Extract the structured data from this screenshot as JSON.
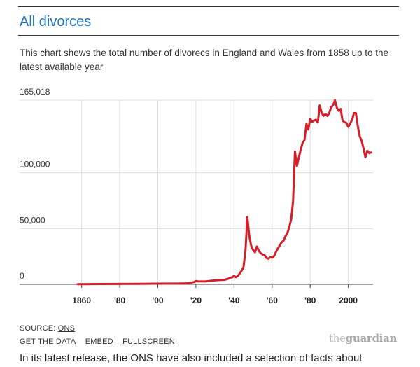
{
  "header": {
    "title": "All divorces",
    "subtitle": "This chart shows the total number of divorecs in England and Wales from 1858 up to the latest available year"
  },
  "chart_data": {
    "type": "line",
    "title": "All divorces",
    "xlabel": "",
    "ylabel": "",
    "xlim": [
      1848,
      2013
    ],
    "ylim": [
      0,
      165018
    ],
    "y_ticks": [
      0,
      50000,
      100000,
      165018
    ],
    "y_tick_labels": [
      "0",
      "50,000",
      "100,000",
      "165,018"
    ],
    "x_ticks": [
      1860,
      1880,
      1900,
      1920,
      1940,
      1960,
      1980,
      2000
    ],
    "x_tick_labels": [
      "1860",
      "'80",
      "'00",
      "'20",
      "'40",
      "'60",
      "'80",
      "2000"
    ],
    "grid": true,
    "line_color": "#d61d28",
    "series": [
      {
        "name": "",
        "x": [
          1858,
          1870,
          1880,
          1890,
          1900,
          1910,
          1915,
          1919,
          1920,
          1921,
          1925,
          1930,
          1935,
          1937,
          1938,
          1939,
          1940,
          1941,
          1942,
          1943,
          1944,
          1945,
          1946,
          1947,
          1948,
          1949,
          1950,
          1951,
          1952,
          1953,
          1954,
          1955,
          1956,
          1957,
          1958,
          1959,
          1960,
          1961,
          1962,
          1963,
          1964,
          1965,
          1966,
          1967,
          1968,
          1969,
          1970,
          1971,
          1972,
          1973,
          1974,
          1975,
          1976,
          1977,
          1978,
          1979,
          1980,
          1981,
          1982,
          1983,
          1984,
          1985,
          1986,
          1987,
          1988,
          1989,
          1990,
          1991,
          1992,
          1993,
          1994,
          1995,
          1996,
          1997,
          1998,
          1999,
          2000,
          2001,
          2002,
          2003,
          2004,
          2005,
          2006,
          2007,
          2008,
          2009,
          2010,
          2011,
          2012
        ],
        "values": [
          200,
          300,
          400,
          500,
          600,
          700,
          900,
          2000,
          3000,
          2700,
          2600,
          3600,
          4100,
          5000,
          6000,
          6300,
          7500,
          6400,
          7400,
          9800,
          12200,
          15600,
          29800,
          60300,
          43700,
          34800,
          30900,
          28800,
          33900,
          30300,
          28000,
          26800,
          26300,
          23800,
          23000,
          24300,
          23900,
          25400,
          28900,
          32100,
          34900,
          37800,
          39100,
          43100,
          45800,
          51300,
          58200,
          74400,
          119000,
          106000,
          113500,
          120500,
          126700,
          129100,
          143700,
          138700,
          148300,
          145700,
          146700,
          147500,
          145000,
          160300,
          153900,
          151000,
          152600,
          150900,
          153400,
          158700,
          160400,
          165018,
          158200,
          155500,
          157100,
          146700,
          145200,
          144600,
          141100,
          143800,
          147700,
          153500,
          153400,
          141800,
          132600,
          128500,
          121800,
          113900,
          119600,
          117600,
          118100
        ]
      }
    ]
  },
  "footer": {
    "source_prefix": "SOURCE: ",
    "source_link": "ONS",
    "links": [
      "GET THE DATA",
      "EMBED",
      "FULLSCREEN"
    ],
    "logo_the": "the",
    "logo_name": "guardian"
  },
  "body_text": "In its latest release, the ONS have also included a selection of facts about"
}
